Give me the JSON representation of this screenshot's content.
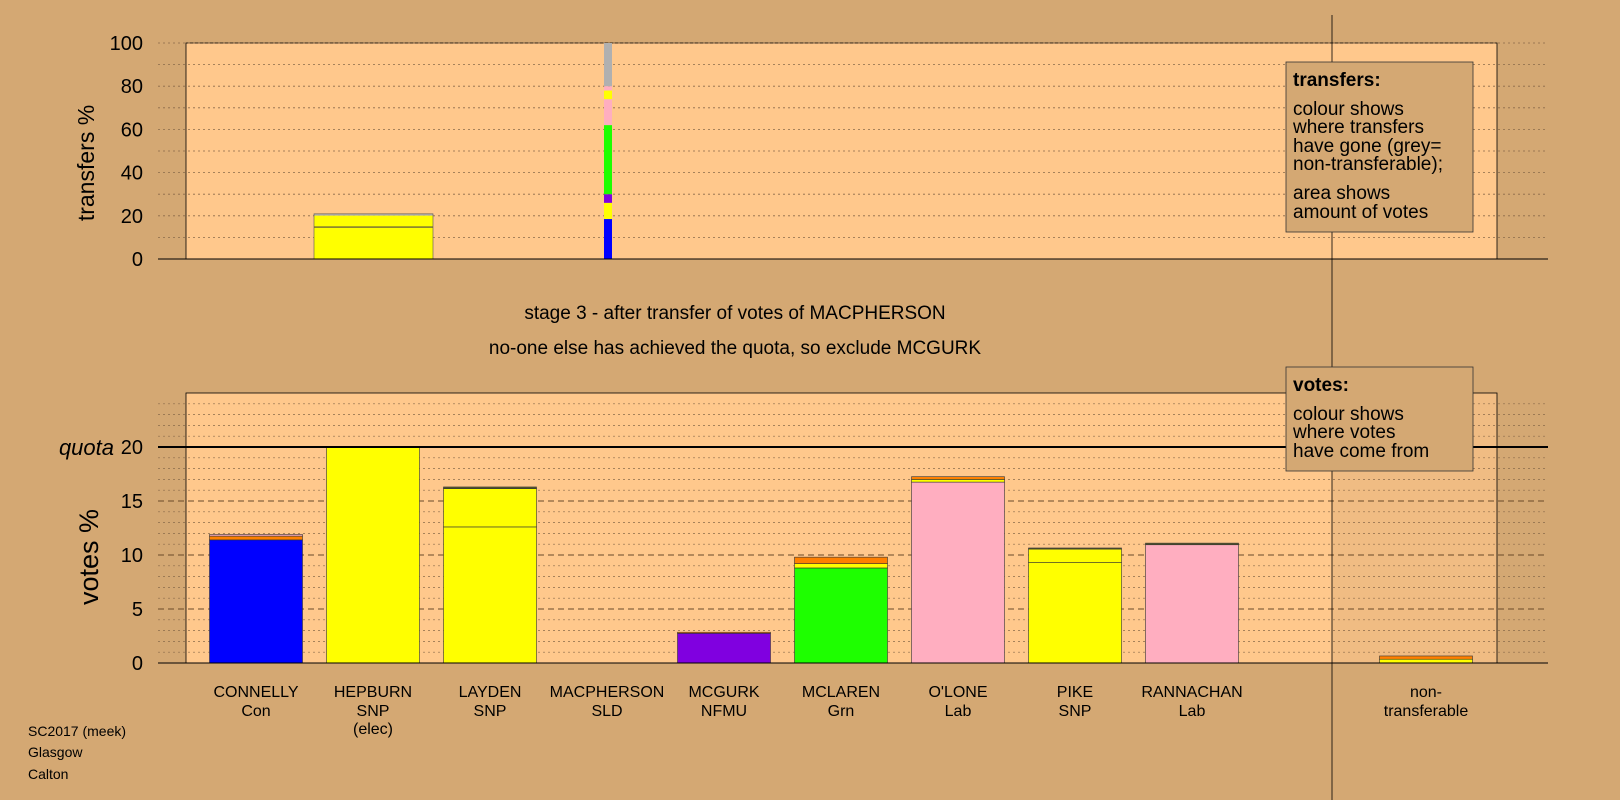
{
  "colors": {
    "background": "#d4a873",
    "plot_background": "#ffc88c",
    "blue": "#0000ff",
    "yellow": "#ffff00",
    "pink": "#ffaec0",
    "green": "#1eff00",
    "purple": "#8000e0",
    "orange": "#ff8000",
    "grey": "#b0b0b0",
    "dark_olive": "#5a5a2a"
  },
  "stage_text": {
    "line1": "stage 3 - after transfer of votes of MACPHERSON",
    "line2": "no-one else has achieved the quota, so exclude MCGURK"
  },
  "legend": {
    "transfers": {
      "title": "transfers:",
      "lines1": [
        "colour shows",
        "where transfers",
        "have gone (grey=",
        "non-transferable);"
      ],
      "lines2": [
        "area shows",
        "amount of votes"
      ]
    },
    "votes": {
      "title": "votes:",
      "lines": [
        "colour shows",
        "where votes",
        "have come from"
      ]
    }
  },
  "footer": [
    "SC2017 (meek)",
    "Glasgow",
    "Calton"
  ],
  "chart_data": [
    {
      "type": "bar",
      "stacked": true,
      "ylabel": "transfers %",
      "ylim": [
        0,
        100
      ],
      "yticks": [
        0,
        20,
        40,
        60,
        80,
        100
      ],
      "grid": "dotted",
      "bars": [
        {
          "category": "HEPBURN",
          "segments": [
            {
              "value": 14.5,
              "color": "yellow"
            },
            {
              "value": 0.6,
              "color": "dark_olive"
            },
            {
              "value": 5.0,
              "color": "yellow"
            },
            {
              "value": 0.8,
              "color": "grey"
            }
          ]
        },
        {
          "category": "MACPHERSON",
          "segments": [
            {
              "value": 18.5,
              "color": "blue"
            },
            {
              "value": 7.5,
              "color": "yellow"
            },
            {
              "value": 4.0,
              "color": "purple"
            },
            {
              "value": 32.0,
              "color": "green"
            },
            {
              "value": 12.0,
              "color": "pink"
            },
            {
              "value": 4.0,
              "color": "yellow"
            },
            {
              "value": 2.0,
              "color": "pink"
            },
            {
              "value": 20.0,
              "color": "grey"
            }
          ]
        }
      ]
    },
    {
      "type": "bar",
      "stacked": true,
      "ylabel": "votes %",
      "ylim": [
        0,
        25
      ],
      "yticks": [
        0,
        5,
        10,
        15,
        20
      ],
      "quota": 20,
      "quota_label": "quota",
      "categories": [
        {
          "name": "CONNELLY",
          "party": "Con"
        },
        {
          "name": "HEPBURN",
          "party": "SNP",
          "note": "(elec)"
        },
        {
          "name": "LAYDEN",
          "party": "SNP"
        },
        {
          "name": "MACPHERSON",
          "party": "SLD"
        },
        {
          "name": "MCGURK",
          "party": "NFMU"
        },
        {
          "name": "MCLAREN",
          "party": "Grn"
        },
        {
          "name": "O'LONE",
          "party": "Lab"
        },
        {
          "name": "PIKE",
          "party": "SNP"
        },
        {
          "name": "RANNACHAN",
          "party": "Lab"
        },
        {
          "name": "non-",
          "party": "transferable"
        }
      ],
      "bars": [
        {
          "category": "CONNELLY",
          "segments": [
            {
              "value": 11.4,
              "color": "blue"
            },
            {
              "value": 0.35,
              "color": "orange"
            },
            {
              "value": 0.15,
              "color": "pink"
            }
          ]
        },
        {
          "category": "HEPBURN",
          "segments": [
            {
              "value": 19.95,
              "color": "yellow"
            }
          ]
        },
        {
          "category": "LAYDEN",
          "segments": [
            {
              "value": 12.6,
              "color": "yellow"
            },
            {
              "value": 3.55,
              "color": "yellow"
            },
            {
              "value": 0.15,
              "color": "dark_olive"
            }
          ]
        },
        {
          "category": "MACPHERSON",
          "segments": []
        },
        {
          "category": "MCGURK",
          "segments": [
            {
              "value": 2.75,
              "color": "purple"
            },
            {
              "value": 0.1,
              "color": "orange"
            }
          ]
        },
        {
          "category": "MCLAREN",
          "segments": [
            {
              "value": 8.8,
              "color": "green"
            },
            {
              "value": 0.4,
              "color": "yellow"
            },
            {
              "value": 0.6,
              "color": "orange"
            }
          ]
        },
        {
          "category": "O'LONE",
          "segments": [
            {
              "value": 16.75,
              "color": "pink"
            },
            {
              "value": 0.25,
              "color": "yellow"
            },
            {
              "value": 0.25,
              "color": "orange"
            }
          ]
        },
        {
          "category": "PIKE",
          "segments": [
            {
              "value": 9.3,
              "color": "yellow"
            },
            {
              "value": 1.25,
              "color": "yellow"
            },
            {
              "value": 0.1,
              "color": "dark_olive"
            }
          ]
        },
        {
          "category": "RANNACHAN",
          "segments": [
            {
              "value": 10.95,
              "color": "pink"
            },
            {
              "value": 0.15,
              "color": "dark_olive"
            }
          ]
        },
        {
          "category": "non-",
          "segments": [
            {
              "value": 0.35,
              "color": "yellow"
            },
            {
              "value": 0.3,
              "color": "orange"
            }
          ]
        }
      ]
    }
  ]
}
